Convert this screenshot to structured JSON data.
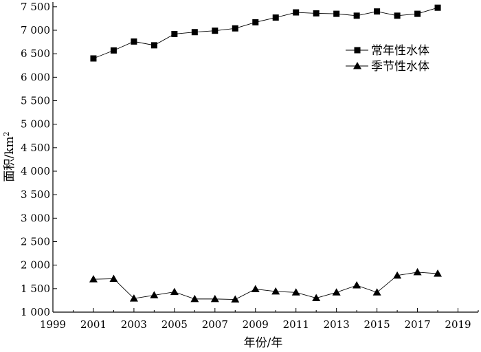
{
  "chart_data": {
    "type": "line",
    "title": "",
    "xlabel": "年份/年",
    "ylabel_main": "面积/km",
    "ylabel_sup": "2",
    "xlim": [
      1999,
      2020
    ],
    "ylim": [
      1000,
      7600
    ],
    "xticks": [
      1999,
      2001,
      2003,
      2005,
      2007,
      2009,
      2011,
      2013,
      2015,
      2017,
      2019
    ],
    "xtick_labels": [
      "1999",
      "2001",
      "2003",
      "2005",
      "2007",
      "2009",
      "2011",
      "2013",
      "2015",
      "2017",
      "2019"
    ],
    "yticks": [
      1000,
      1500,
      2000,
      2500,
      3000,
      3500,
      4000,
      4500,
      5000,
      5500,
      6000,
      6500,
      7000,
      7500
    ],
    "ytick_labels": [
      "1 000",
      "1 500",
      "2 000",
      "2 500",
      "3 000",
      "3 500",
      "4 000",
      "4 500",
      "5 000",
      "5 500",
      "6 000",
      "6 500",
      "7 000",
      "7 500"
    ],
    "grid": false,
    "legend_position": "top-right",
    "x": [
      2001,
      2002,
      2003,
      2004,
      2005,
      2006,
      2007,
      2008,
      2009,
      2010,
      2011,
      2012,
      2013,
      2014,
      2015,
      2016,
      2017,
      2018
    ],
    "series": [
      {
        "name": "常年性水体",
        "marker": "square",
        "values": [
          6400,
          6570,
          6760,
          6680,
          6920,
          6960,
          6990,
          7040,
          7170,
          7270,
          7380,
          7360,
          7350,
          7310,
          7400,
          7310,
          7350,
          7480
        ]
      },
      {
        "name": "季节性水体",
        "marker": "triangle",
        "values": [
          1700,
          1710,
          1290,
          1360,
          1430,
          1280,
          1280,
          1270,
          1490,
          1440,
          1420,
          1300,
          1420,
          1570,
          1420,
          1780,
          1850,
          1820
        ]
      }
    ],
    "colors": {
      "line": "#000000",
      "marker": "#000000",
      "axis": "#000000"
    }
  }
}
